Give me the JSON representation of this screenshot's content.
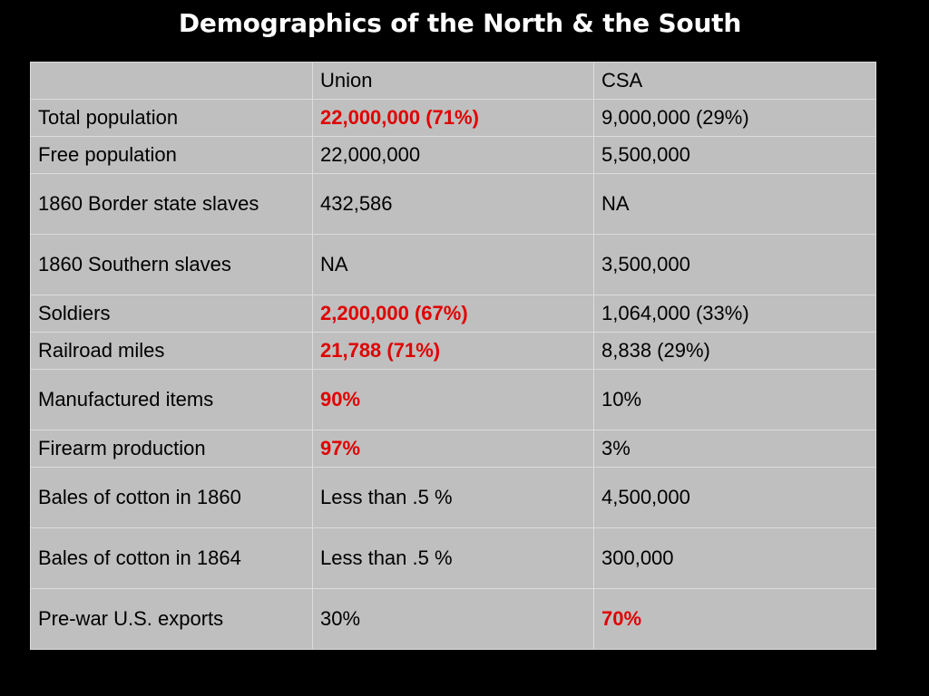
{
  "title": "Demographics of the North & the South",
  "colors": {
    "background": "#000000",
    "table_bg": "#bfbfbf",
    "highlight": "#e00000",
    "title_text": "#ffffff"
  },
  "table": {
    "header": [
      "",
      "Union",
      "CSA"
    ],
    "rows": [
      {
        "label": "Total population",
        "union": "22,000,000 (71%)",
        "csa": "9,000,000 (29%)",
        "highlight": "union"
      },
      {
        "label": "Free population",
        "union": "22,000,000",
        "csa": "5,500,000",
        "highlight": ""
      },
      {
        "label": "1860 Border state slaves",
        "union": "432,586",
        "csa": "NA",
        "highlight": ""
      },
      {
        "label": "1860 Southern slaves",
        "union": "NA",
        "csa": "3,500,000",
        "highlight": ""
      },
      {
        "label": "Soldiers",
        "union": "2,200,000 (67%)",
        "csa": "1,064,000 (33%)",
        "highlight": "union"
      },
      {
        "label": "Railroad miles",
        "union": "21,788 (71%)",
        "csa": "8,838 (29%)",
        "highlight": "union"
      },
      {
        "label": "Manufactured items",
        "union": "90%",
        "csa": "10%",
        "highlight": "union"
      },
      {
        "label": "Firearm production",
        "union": "97%",
        "csa": "3%",
        "highlight": "union"
      },
      {
        "label": "Bales of cotton in 1860",
        "union": "Less than .5 %",
        "csa": "4,500,000",
        "highlight": ""
      },
      {
        "label": "Bales of cotton in 1864",
        "union": "Less than .5 %",
        "csa": "300,000",
        "highlight": ""
      },
      {
        "label": "Pre-war U.S. exports",
        "union": "30%",
        "csa": "70%",
        "highlight": "csa"
      }
    ]
  }
}
